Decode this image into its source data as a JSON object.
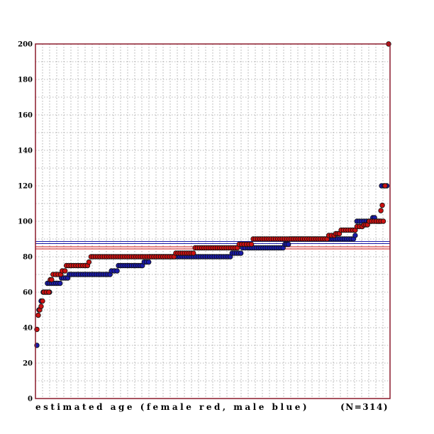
{
  "chart_data": {
    "type": "scatter",
    "title": "",
    "xlabel": "estimated age (female red, male blue)",
    "ylabel": "",
    "count_label": "(N=314)",
    "ylim": [
      0,
      200
    ],
    "yticks": [
      0,
      20,
      40,
      60,
      80,
      100,
      120,
      140,
      160,
      180,
      200
    ],
    "grid": true,
    "x_description": "individuals sorted by estimated age (rank order, 0..1 of range)",
    "series": [
      {
        "color": "#cc1111",
        "reference_line": 85,
        "steps": [
          {
            "from": 0.0,
            "to": 0.0,
            "value": 39
          },
          {
            "from": 0.004,
            "to": 0.004,
            "value": 47
          },
          {
            "from": 0.008,
            "to": 0.008,
            "value": 50
          },
          {
            "from": 0.012,
            "to": 0.012,
            "value": 52
          },
          {
            "from": 0.016,
            "to": 0.016,
            "value": 55
          },
          {
            "from": 0.02,
            "to": 0.034,
            "value": 60
          },
          {
            "from": 0.038,
            "to": 0.042,
            "value": 67
          },
          {
            "from": 0.046,
            "to": 0.068,
            "value": 70
          },
          {
            "from": 0.072,
            "to": 0.08,
            "value": 72
          },
          {
            "from": 0.084,
            "to": 0.144,
            "value": 75
          },
          {
            "from": 0.148,
            "to": 0.148,
            "value": 77
          },
          {
            "from": 0.154,
            "to": 0.39,
            "value": 80
          },
          {
            "from": 0.395,
            "to": 0.445,
            "value": 82
          },
          {
            "from": 0.45,
            "to": 0.57,
            "value": 85
          },
          {
            "from": 0.575,
            "to": 0.61,
            "value": 87
          },
          {
            "from": 0.615,
            "to": 0.825,
            "value": 90
          },
          {
            "from": 0.83,
            "to": 0.845,
            "value": 92
          },
          {
            "from": 0.85,
            "to": 0.86,
            "value": 93
          },
          {
            "from": 0.865,
            "to": 0.905,
            "value": 95
          },
          {
            "from": 0.91,
            "to": 0.925,
            "value": 97
          },
          {
            "from": 0.93,
            "to": 0.94,
            "value": 98
          },
          {
            "from": 0.945,
            "to": 0.985,
            "value": 100
          },
          {
            "from": 0.978,
            "to": 0.978,
            "value": 106
          },
          {
            "from": 0.982,
            "to": 0.982,
            "value": 109
          },
          {
            "from": 0.99,
            "to": 0.99,
            "value": 120
          },
          {
            "from": 1.0,
            "to": 1.0,
            "value": 200
          }
        ]
      },
      {
        "color": "#1a1aa8",
        "reference_line": 88,
        "steps": [
          {
            "from": 0.0,
            "to": 0.0,
            "value": 30
          },
          {
            "from": 0.006,
            "to": 0.006,
            "value": 50
          },
          {
            "from": 0.012,
            "to": 0.012,
            "value": 55
          },
          {
            "from": 0.018,
            "to": 0.036,
            "value": 60
          },
          {
            "from": 0.03,
            "to": 0.066,
            "value": 65
          },
          {
            "from": 0.07,
            "to": 0.088,
            "value": 68
          },
          {
            "from": 0.092,
            "to": 0.208,
            "value": 70
          },
          {
            "from": 0.212,
            "to": 0.228,
            "value": 72
          },
          {
            "from": 0.232,
            "to": 0.3,
            "value": 75
          },
          {
            "from": 0.305,
            "to": 0.318,
            "value": 77
          },
          {
            "from": 0.322,
            "to": 0.55,
            "value": 80
          },
          {
            "from": 0.555,
            "to": 0.58,
            "value": 82
          },
          {
            "from": 0.585,
            "to": 0.6,
            "value": 85
          },
          {
            "from": 0.605,
            "to": 0.7,
            "value": 85
          },
          {
            "from": 0.705,
            "to": 0.715,
            "value": 87
          },
          {
            "from": 0.72,
            "to": 0.9,
            "value": 90
          },
          {
            "from": 0.905,
            "to": 0.905,
            "value": 92
          },
          {
            "from": 0.91,
            "to": 0.95,
            "value": 100
          },
          {
            "from": 0.955,
            "to": 0.96,
            "value": 102
          },
          {
            "from": 0.965,
            "to": 0.975,
            "value": 100
          },
          {
            "from": 0.98,
            "to": 0.995,
            "value": 120
          }
        ]
      }
    ]
  }
}
